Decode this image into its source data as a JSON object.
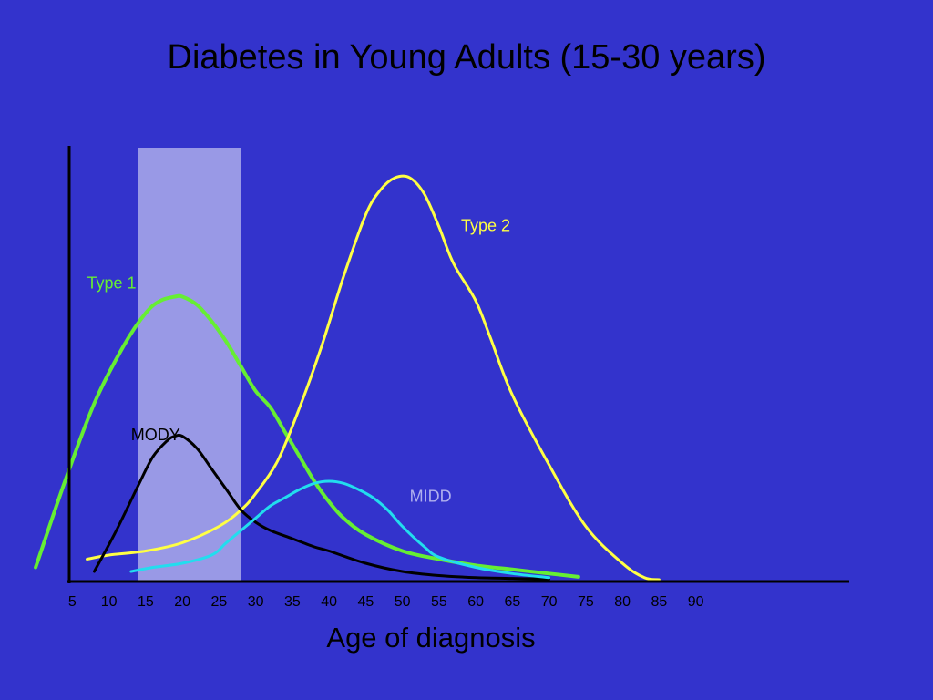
{
  "chart_data": {
    "type": "line",
    "title": "Diabetes in Young Adults (15-30 years)",
    "xlabel": "Age of diagnosis",
    "ylabel": "",
    "x_ticks": [
      "5",
      "10",
      "15",
      "20",
      "25",
      "30",
      "35",
      "40",
      "45",
      "50",
      "55",
      "60",
      "65",
      "70",
      "75",
      "80",
      "85",
      "90"
    ],
    "xlim": [
      0,
      95
    ],
    "ylim": [
      0,
      100
    ],
    "y_ticks_shown": false,
    "legend": "none",
    "highlight_band": {
      "x0": 14,
      "x1": 28,
      "color": "#9999e6"
    },
    "background_color": "#3333cc",
    "series": [
      {
        "name": "Type 1",
        "color": "#66ee33",
        "label_pos": [
          7,
          71
        ],
        "x": [
          0,
          4,
          8,
          12,
          15,
          17,
          19,
          20,
          22,
          24,
          26,
          28,
          30,
          32,
          34,
          36,
          38,
          40,
          42,
          45,
          50,
          55,
          60,
          65,
          70,
          74
        ],
        "y": [
          3,
          24,
          43,
          57,
          65,
          68,
          69,
          69,
          67,
          63,
          58,
          52,
          46,
          42,
          36,
          30,
          24,
          19,
          15,
          11,
          7,
          5,
          3.5,
          2.5,
          1.5,
          0.7
        ]
      },
      {
        "name": "Type 2",
        "color": "#ffff44",
        "label_pos": [
          58,
          85
        ],
        "x": [
          7,
          10,
          15,
          20,
          25,
          28,
          30,
          33,
          36,
          39,
          42,
          45,
          47,
          49,
          51,
          53,
          55,
          57,
          60,
          62,
          65,
          70,
          75,
          80,
          83,
          85
        ],
        "y": [
          5,
          6,
          7,
          9,
          13,
          17,
          21,
          29,
          42,
          57,
          74,
          89,
          95,
          98,
          98,
          94,
          86,
          77,
          68,
          59,
          45,
          28,
          13,
          4,
          0.5,
          0
        ]
      },
      {
        "name": "MODY",
        "color": "#000000",
        "label_pos": [
          13,
          34
        ],
        "x": [
          8,
          11,
          14,
          16,
          18,
          19,
          20,
          22,
          24,
          26,
          28,
          30,
          32,
          35,
          38,
          40,
          45,
          50,
          55,
          60,
          65,
          70
        ],
        "y": [
          2,
          12,
          23,
          30,
          34,
          35,
          35,
          32,
          27,
          22,
          17,
          14,
          12,
          10,
          8,
          7,
          4,
          2,
          1,
          0.5,
          0.3,
          0.2
        ]
      },
      {
        "name": "MIDD",
        "color": "#22ddee",
        "label_colour": "#b0b0ee",
        "label_pos": [
          51,
          19
        ],
        "x": [
          13,
          16,
          20,
          24,
          26,
          28,
          30,
          32,
          34,
          36,
          38,
          40,
          42,
          44,
          46,
          48,
          50,
          53,
          55,
          60,
          65,
          70
        ],
        "y": [
          2,
          3,
          4,
          6,
          9,
          12,
          15,
          18,
          20,
          22,
          23.5,
          24,
          23.5,
          22,
          20,
          17,
          13,
          8,
          5.5,
          3,
          1.5,
          0.5
        ]
      }
    ]
  }
}
